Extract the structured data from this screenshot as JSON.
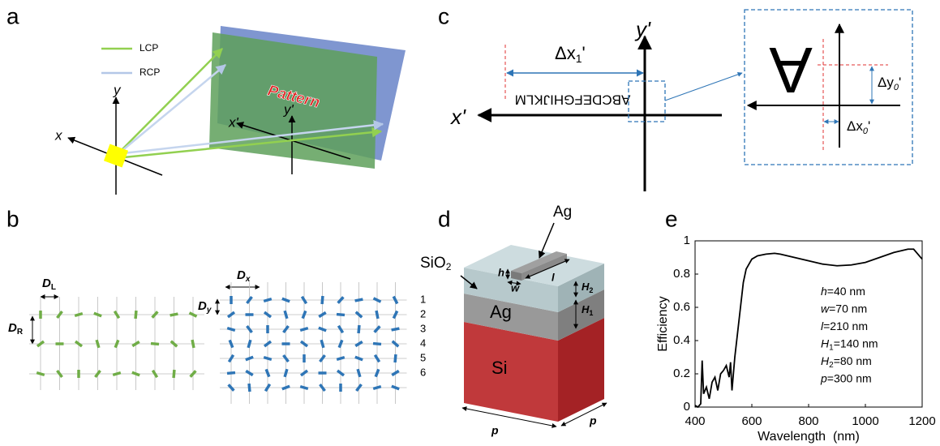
{
  "panel_labels": [
    "a",
    "b",
    "c",
    "d",
    "e"
  ],
  "panel_a": {
    "legend": [
      {
        "name": "LCP",
        "color": "#92d050"
      },
      {
        "name": "RCP",
        "color": "#b4c7e7"
      }
    ],
    "pattern": "Pattern",
    "x": "x",
    "y": "y",
    "x_prime": "x'",
    "y_prime": "y'"
  },
  "panel_b": {
    "D_L": [
      "D",
      "L"
    ],
    "D_R": [
      "D",
      "R"
    ],
    "D_x": [
      "D",
      "x"
    ],
    "D_y": [
      "D",
      "y"
    ],
    "rows": [
      "1",
      "2",
      "3",
      "4",
      "5",
      "6"
    ]
  },
  "panel_c": {
    "x_prime": "x'",
    "y_prime": "y'",
    "delta_x1": [
      "Δx",
      "1",
      "'"
    ],
    "pattern_text": "ABCDEFGHIJKLM",
    "inset_letter": "A",
    "delta_y0": [
      "Δy",
      "0",
      "'"
    ],
    "delta_x0": [
      "Δx",
      "0",
      "'"
    ]
  },
  "panel_d": {
    "ag_label": "Ag",
    "sio2": [
      "SiO",
      "2"
    ],
    "h": "h",
    "w": "w",
    "l": "l",
    "H2": [
      "H",
      "2"
    ],
    "H1": [
      "H",
      "1"
    ],
    "ag_layer": "Ag",
    "si_layer": "Si",
    "p_front": "p",
    "p_side": "p"
  },
  "chart_data": {
    "type": "line",
    "x_label": "Wavelength  (nm)",
    "y_label": "Efficiency",
    "color": "#000000",
    "x": [
      400,
      410,
      420,
      425,
      430,
      440,
      450,
      460,
      470,
      480,
      490,
      500,
      510,
      520,
      525,
      530,
      540,
      550,
      560,
      570,
      580,
      600,
      620,
      650,
      680,
      700,
      750,
      800,
      850,
      900,
      950,
      1000,
      1050,
      1100,
      1150,
      1170,
      1200
    ],
    "values": [
      0.01,
      0.0,
      0.02,
      0.28,
      0.08,
      0.12,
      0.05,
      0.15,
      0.18,
      0.1,
      0.2,
      0.22,
      0.25,
      0.18,
      0.27,
      0.1,
      0.3,
      0.45,
      0.6,
      0.75,
      0.83,
      0.89,
      0.91,
      0.92,
      0.925,
      0.92,
      0.9,
      0.88,
      0.86,
      0.85,
      0.855,
      0.87,
      0.9,
      0.93,
      0.95,
      0.95,
      0.89
    ],
    "xlim": [
      400,
      1200
    ],
    "ylim": [
      0,
      1
    ],
    "xticks": [
      400,
      600,
      800,
      1000,
      1200
    ],
    "yticks": [
      0,
      0.2,
      0.4,
      0.6,
      0.8,
      1
    ],
    "annotations": [
      {
        "var": "h",
        "text": "=40 nm"
      },
      {
        "var": "w",
        "text": "=70 nm"
      },
      {
        "var": "l",
        "text": "=210 nm"
      },
      {
        "var": "H",
        "sub": "1",
        "text": "=140 nm"
      },
      {
        "var": "H",
        "sub": "2",
        "text": "=80 nm"
      },
      {
        "var": "p",
        "text": "=300 nm"
      }
    ]
  }
}
